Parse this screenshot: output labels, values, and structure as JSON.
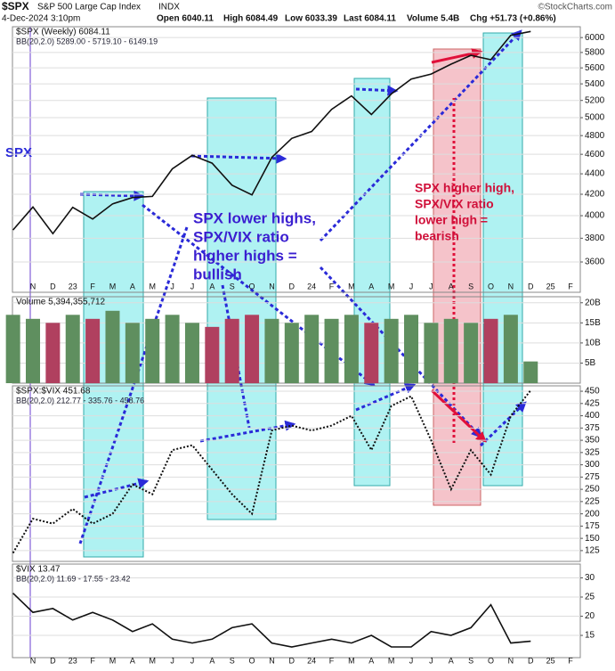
{
  "header": {
    "symbol": "$SPX",
    "name": "S&P 500 Large Cap Index",
    "exchange": "INDX",
    "credit": "©StockCharts.com",
    "date": "4-Dec-2024 3:10pm",
    "quote": [
      "Open 6040.11",
      "High 6084.49",
      "Low 6033.39",
      "Last 6084.11",
      "Volume 5.4B",
      "Chg +51.73 (+0.86%)"
    ]
  },
  "annotations": {
    "left_label": "SPX",
    "bullish": [
      "SPX lower highs,",
      "SPX/VIX ratio",
      "higher highs =",
      "bullish"
    ],
    "bearish": [
      "SPX higher high,",
      "SPX/VIX ratio",
      "lower high =",
      "bearish"
    ]
  },
  "chart_data": [
    {
      "type": "line",
      "title": "$SPX (Weekly) 6084.11",
      "subtitle": "BB(20,2.0) 5289.00 - 5719.10 - 6149.19",
      "log_scale": true,
      "color": "#111111",
      "categories": [
        null,
        "N",
        "D",
        "23",
        "F",
        "M",
        "A",
        "M",
        "J",
        "J",
        "A",
        "S",
        "O",
        "N",
        "D",
        "24",
        "F",
        "M",
        "A",
        "M",
        "J",
        "J",
        "A",
        "S",
        "O",
        "N",
        "D",
        "25",
        "F"
      ],
      "values": [
        3872,
        4080,
        3840,
        4077,
        3970,
        4109,
        4169,
        4180,
        4450,
        4589,
        4508,
        4288,
        4194,
        4568,
        4770,
        4846,
        5096,
        5254,
        5036,
        5278,
        5460,
        5522,
        5648,
        5762,
        5705,
        6032,
        6084,
        null,
        null
      ],
      "ylim": [
        3360,
        6150
      ],
      "yticks": [
        3600,
        3800,
        4000,
        4200,
        4400,
        4600,
        4800,
        5000,
        5200,
        5400,
        5600,
        5800,
        6000
      ],
      "grid": true
    },
    {
      "type": "bar",
      "title": "Volume 5,394,355,712",
      "values": [
        17,
        16,
        15,
        17,
        16,
        18,
        15,
        16,
        17,
        15,
        14,
        16,
        17,
        16,
        15,
        17,
        16,
        17,
        15,
        16,
        17,
        15,
        16,
        15,
        16,
        17,
        5.4,
        null,
        null
      ],
      "colors": [
        "#5f8f5f",
        "#5f8f5f",
        "#b0405f",
        "#5f8f5f",
        "#b0405f",
        "#5f8f5f",
        "#5f8f5f",
        "#5f8f5f",
        "#5f8f5f",
        "#5f8f5f",
        "#b0405f",
        "#b0405f",
        "#b0405f",
        "#5f8f5f",
        "#5f8f5f",
        "#5f8f5f",
        "#5f8f5f",
        "#5f8f5f",
        "#b0405f",
        "#5f8f5f",
        "#5f8f5f",
        "#5f8f5f",
        "#5f8f5f",
        "#5f8f5f",
        "#b0405f",
        "#5f8f5f",
        "#5f8f5f",
        null,
        null
      ],
      "ylim": [
        0,
        21.5
      ],
      "yticks": [
        {
          "value": 5,
          "label": "5B"
        },
        {
          "value": 10,
          "label": "10B"
        },
        {
          "value": 15,
          "label": "15B"
        },
        {
          "value": 20,
          "label": "20B"
        }
      ],
      "grid": true
    },
    {
      "type": "line",
      "title": "$SPX:$VIX 451.68",
      "subtitle": "BB(20,2.0) 212.77 - 335.76 - 458.76",
      "color": "#111111",
      "dashed": true,
      "values": [
        120,
        190,
        180,
        210,
        180,
        200,
        260,
        240,
        330,
        340,
        290,
        240,
        200,
        370,
        380,
        370,
        380,
        400,
        330,
        420,
        440,
        350,
        250,
        330,
        280,
        400,
        452,
        null,
        null
      ],
      "ylim": [
        103,
        461
      ],
      "yticks": [
        125,
        150,
        175,
        200,
        225,
        250,
        275,
        300,
        325,
        350,
        375,
        400,
        425,
        450
      ],
      "grid": true
    },
    {
      "type": "line",
      "title": "$VIX 13.47",
      "subtitle": "BB(20,2.0) 11.69 - 17.55 - 23.42",
      "color": "#111111",
      "categories": [
        null,
        "N",
        "D",
        "23",
        "F",
        "M",
        "A",
        "M",
        "J",
        "J",
        "A",
        "S",
        "O",
        "N",
        "D",
        "24",
        "F",
        "M",
        "A",
        "M",
        "J",
        "J",
        "A",
        "S",
        "O",
        "N",
        "D",
        "25",
        "F"
      ],
      "values": [
        26,
        21,
        22,
        19,
        21,
        19,
        16,
        18,
        14,
        13,
        14,
        17,
        18,
        13,
        12,
        13,
        14,
        13,
        15,
        12,
        12,
        16,
        15,
        17,
        23,
        13,
        13.47,
        null,
        null
      ],
      "ylim": [
        9.2,
        33.6
      ],
      "yticks": [
        15,
        20,
        25,
        30
      ],
      "grid": true
    }
  ]
}
